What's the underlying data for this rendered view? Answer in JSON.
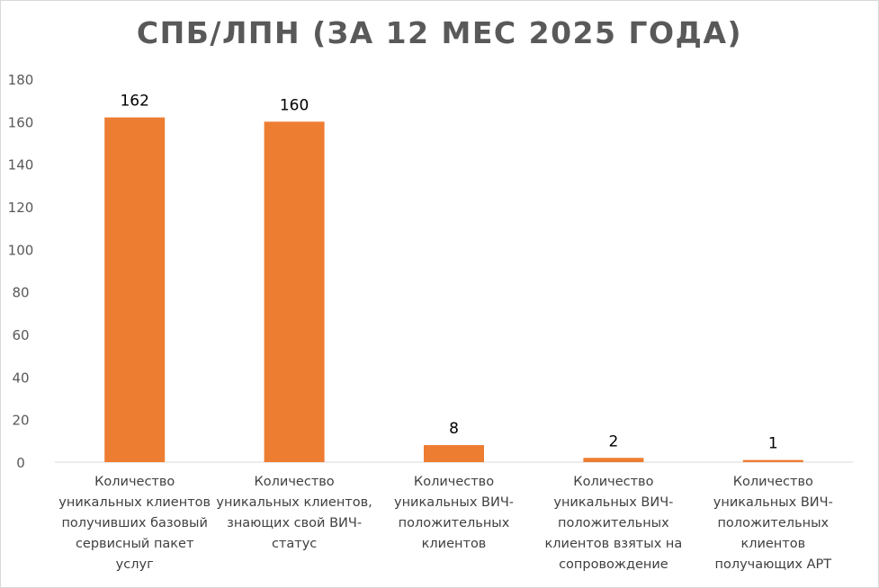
{
  "chart_data": {
    "type": "bar",
    "title": "СПБ/ЛПН (ЗА 12 МЕС 2025 ГОДА)",
    "xlabel": "",
    "ylabel": "",
    "ylim": [
      0,
      180
    ],
    "yticks": [
      0,
      20,
      40,
      60,
      80,
      100,
      120,
      140,
      160,
      180
    ],
    "grid": false,
    "legend": "none",
    "bar_color": "#ED7D31",
    "categories": [
      "Количество\nуникальных клиентов\nполучивших базовый\nсервисный пакет\nуслуг",
      "Количество\nуникальных клиентов,\nзнающих свой ВИЧ-\nстатус",
      "Количество\nуникальных ВИЧ-\nположительных\nклиентов",
      "Количество\nуникальных ВИЧ-\nположительных\nклиентов взятых на\nсопровождение",
      "Количество\nуникальных ВИЧ-\nположительных\nклиентов\nполучающих АРТ"
    ],
    "values": [
      162,
      160,
      8,
      2,
      1
    ],
    "data_labels": [
      "162",
      "160",
      "8",
      "2",
      "1"
    ]
  }
}
